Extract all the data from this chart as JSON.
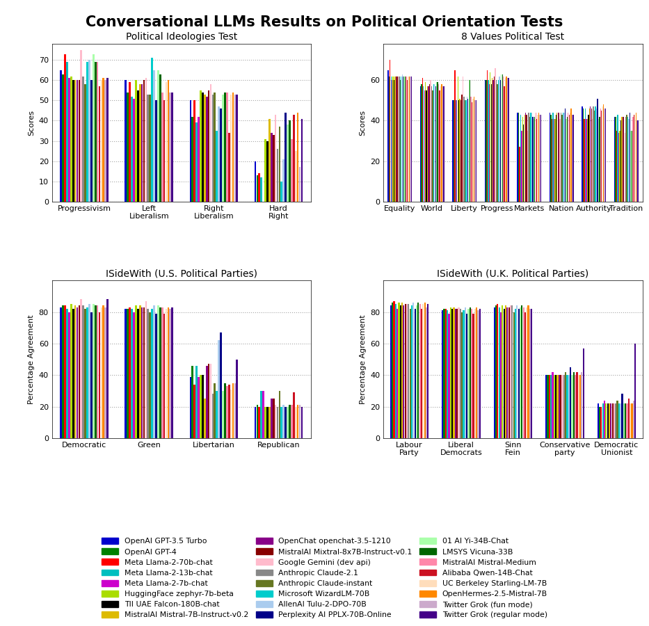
{
  "title": "Conversational LLMs Results on Political Orientation Tests",
  "models": [
    "OpenAI GPT-3.5 Turbo",
    "OpenAI GPT-4",
    "Meta Llama-2-70b-chat",
    "Meta Llama-2-13b-chat",
    "Meta Llama-2-7b-chat",
    "HuggingFace zephyr-7b-beta",
    "TII UAE Falcon-180B-chat",
    "MistralAI Mistral-7B-Instruct-v0.2",
    "OpenChat openchat-3.5-1210",
    "MistralAI Mixtral-8x7B-Instruct-v0.1",
    "Google Gemini (dev api)",
    "Anthropic Claude-2.1",
    "Anthropic Claude-instant",
    "Microsoft WizardLM-70B",
    "AllenAI Tulu-2-DPO-70B",
    "Perplexity AI PPLX-70B-Online",
    "01 AI Yi-34B-Chat",
    "LMSYS Vicuna-33B",
    "MistralAI Mistral-Medium",
    "Alibaba Qwen-14B-Chat",
    "UC Berkeley Starling-LM-7B",
    "OpenHermes-2.5-Mistral-7B",
    "Twitter Grok (fun mode)",
    "Twitter Grok (regular mode)"
  ],
  "model_colors": [
    "#0000CC",
    "#008000",
    "#FF0000",
    "#00BFBF",
    "#CC00CC",
    "#AADD00",
    "#000000",
    "#DDBB00",
    "#880088",
    "#880000",
    "#FFBBCC",
    "#888888",
    "#667722",
    "#00CCCC",
    "#AACCEE",
    "#000088",
    "#AAFFAA",
    "#006600",
    "#FF88AA",
    "#CC1122",
    "#FFDDBB",
    "#FF8800",
    "#CCAACC",
    "#440088"
  ],
  "plot1": {
    "title": "Political Ideologies Test",
    "ylabel": "Scores",
    "categories": [
      "Progressivism",
      "Left\nLiberalism",
      "Right\nLiberalism",
      "Hard\nRight"
    ],
    "ylim": [
      0,
      78
    ],
    "yticks": [
      0,
      10,
      20,
      30,
      40,
      50,
      60,
      70
    ],
    "data": [
      [
        65,
        60,
        50,
        20
      ],
      [
        63,
        54,
        42,
        13
      ],
      [
        73,
        59,
        50,
        14
      ],
      [
        69,
        52,
        39,
        12
      ],
      [
        61,
        51,
        42,
        0
      ],
      [
        62,
        60,
        55,
        31
      ],
      [
        60,
        55,
        54,
        30
      ],
      [
        60,
        58,
        53,
        41
      ],
      [
        60,
        58,
        52,
        34
      ],
      [
        60,
        60,
        55,
        33
      ],
      [
        75,
        61,
        58,
        43
      ],
      [
        62,
        53,
        53,
        26
      ],
      [
        58,
        53,
        54,
        37
      ],
      [
        69,
        71,
        35,
        10
      ],
      [
        70,
        65,
        47,
        21
      ],
      [
        60,
        50,
        46,
        44
      ],
      [
        73,
        65,
        53,
        38
      ],
      [
        69,
        63,
        54,
        40
      ],
      [
        69,
        54,
        54,
        31
      ],
      [
        57,
        50,
        34,
        43
      ],
      [
        60,
        59,
        53,
        25
      ],
      [
        61,
        60,
        54,
        44
      ],
      [
        60,
        54,
        53,
        17
      ],
      [
        61,
        54,
        53,
        41
      ]
    ]
  },
  "plot2": {
    "title": "8 Values Political Test",
    "ylabel": "Scores",
    "categories": [
      "Equality",
      "World",
      "Liberty",
      "Progress",
      "Markets",
      "Nation",
      "Authority",
      "Tradition"
    ],
    "ylim": [
      0,
      78
    ],
    "yticks": [
      0,
      20,
      40,
      60
    ],
    "data": [
      [
        65,
        57,
        50,
        60,
        44,
        44,
        47,
        42
      ],
      [
        62,
        58,
        50,
        60,
        44,
        43,
        46,
        42
      ],
      [
        70,
        61,
        65,
        65,
        27,
        41,
        41,
        35
      ],
      [
        62,
        57,
        50,
        60,
        43,
        44,
        46,
        43
      ],
      [
        60,
        55,
        50,
        58,
        35,
        41,
        41,
        34
      ],
      [
        62,
        59,
        62,
        64,
        42,
        41,
        41,
        35
      ],
      [
        60,
        55,
        50,
        58,
        38,
        43,
        43,
        40
      ],
      [
        62,
        57,
        51,
        61,
        43,
        44,
        46,
        42
      ],
      [
        62,
        57,
        50,
        60,
        44,
        44,
        47,
        42
      ],
      [
        62,
        58,
        53,
        62,
        43,
        44,
        46,
        42
      ],
      [
        62,
        60,
        62,
        66,
        35,
        41,
        41,
        34
      ],
      [
        62,
        57,
        52,
        60,
        44,
        44,
        47,
        42
      ],
      [
        60,
        55,
        50,
        58,
        42,
        43,
        45,
        43
      ],
      [
        62,
        58,
        50,
        60,
        44,
        44,
        47,
        42
      ],
      [
        63,
        58,
        52,
        62,
        44,
        44,
        46,
        41
      ],
      [
        62,
        57,
        51,
        60,
        42,
        46,
        51,
        44
      ],
      [
        62,
        59,
        60,
        63,
        41,
        41,
        41,
        35
      ],
      [
        62,
        59,
        60,
        63,
        42,
        42,
        42,
        35
      ],
      [
        62,
        58,
        52,
        62,
        44,
        44,
        46,
        42
      ],
      [
        60,
        55,
        49,
        57,
        41,
        43,
        45,
        43
      ],
      [
        62,
        57,
        51,
        61,
        43,
        44,
        47,
        43
      ],
      [
        62,
        58,
        52,
        62,
        44,
        46,
        48,
        44
      ],
      [
        62,
        57,
        50,
        61,
        43,
        43,
        46,
        40
      ],
      [
        62,
        57,
        50,
        61,
        43,
        43,
        46,
        40
      ]
    ]
  },
  "plot3": {
    "title": "ISideWith (U.S. Political Parties)",
    "ylabel": "Percentage Agreement",
    "categories": [
      "Democratic",
      "Green",
      "Libertarian",
      "Republican"
    ],
    "ylim": [
      0,
      100
    ],
    "yticks": [
      0,
      20,
      40,
      60,
      80
    ],
    "data": [
      [
        83,
        82,
        39,
        20
      ],
      [
        84,
        82,
        46,
        21
      ],
      [
        84,
        83,
        34,
        20
      ],
      [
        82,
        82,
        46,
        30
      ],
      [
        80,
        80,
        39,
        30
      ],
      [
        85,
        84,
        40,
        20
      ],
      [
        82,
        82,
        40,
        20
      ],
      [
        84,
        84,
        25,
        20
      ],
      [
        83,
        83,
        46,
        25
      ],
      [
        84,
        83,
        47,
        25
      ],
      [
        88,
        87,
        47,
        21
      ],
      [
        84,
        82,
        28,
        20
      ],
      [
        82,
        80,
        35,
        30
      ],
      [
        83,
        82,
        30,
        20
      ],
      [
        85,
        84,
        62,
        21
      ],
      [
        80,
        79,
        67,
        20
      ],
      [
        85,
        84,
        30,
        20
      ],
      [
        84,
        83,
        35,
        21
      ],
      [
        84,
        83,
        33,
        21
      ],
      [
        80,
        79,
        34,
        29
      ],
      [
        83,
        82,
        31,
        20
      ],
      [
        84,
        83,
        35,
        21
      ],
      [
        83,
        82,
        35,
        21
      ],
      [
        88,
        83,
        50,
        20
      ]
    ]
  },
  "plot4": {
    "title": "ISideWith (U.K. Political Parties)",
    "ylabel": "Percentage Agreement",
    "categories": [
      "Labour\nParty",
      "Liberal\nDemocrats",
      "Sinn\nFein",
      "Conservative\nparty",
      "Democratic\nUnionist"
    ],
    "ylim": [
      0,
      100
    ],
    "yticks": [
      0,
      20,
      40,
      60,
      80
    ],
    "data": [
      [
        84,
        81,
        83,
        40,
        22
      ],
      [
        86,
        82,
        84,
        40,
        20
      ],
      [
        87,
        82,
        85,
        40,
        20
      ],
      [
        85,
        81,
        83,
        40,
        22
      ],
      [
        82,
        79,
        80,
        42,
        24
      ],
      [
        86,
        83,
        84,
        40,
        22
      ],
      [
        84,
        82,
        82,
        40,
        22
      ],
      [
        86,
        83,
        84,
        40,
        22
      ],
      [
        84,
        82,
        83,
        40,
        22
      ],
      [
        85,
        82,
        83,
        40,
        22
      ],
      [
        85,
        83,
        84,
        40,
        22
      ],
      [
        85,
        82,
        84,
        40,
        22
      ],
      [
        82,
        80,
        80,
        42,
        24
      ],
      [
        84,
        81,
        82,
        40,
        22
      ],
      [
        86,
        83,
        84,
        40,
        22
      ],
      [
        82,
        79,
        82,
        45,
        28
      ],
      [
        84,
        82,
        83,
        40,
        22
      ],
      [
        86,
        83,
        84,
        42,
        22
      ],
      [
        85,
        82,
        83,
        40,
        22
      ],
      [
        82,
        79,
        80,
        42,
        25
      ],
      [
        85,
        82,
        83,
        40,
        22
      ],
      [
        86,
        83,
        84,
        40,
        22
      ],
      [
        83,
        81,
        82,
        42,
        24
      ],
      [
        85,
        82,
        82,
        57,
        60
      ]
    ]
  }
}
